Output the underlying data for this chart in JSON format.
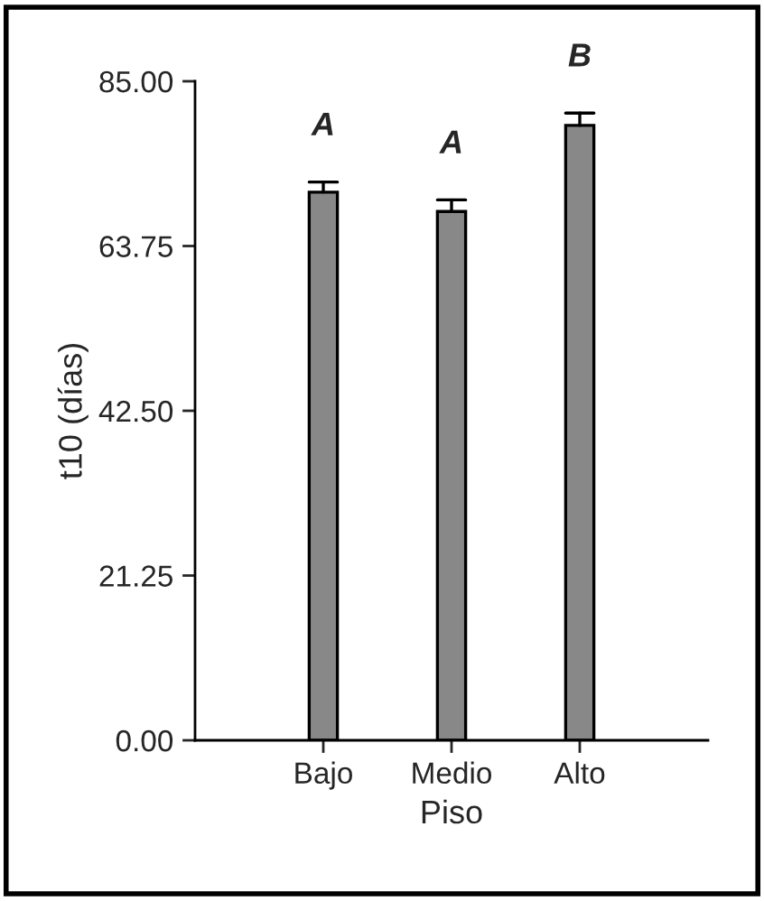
{
  "chart_data": {
    "type": "bar",
    "xlabel": "Piso",
    "ylabel": "t10 (días)",
    "categories": [
      "Bajo",
      "Medio",
      "Alto"
    ],
    "values": [
      70.7,
      68.2,
      79.3
    ],
    "errors": [
      [
        70.7,
        72.0
      ],
      [
        68.2,
        69.7
      ],
      [
        79.3,
        80.9
      ]
    ],
    "color": "#888888",
    "ylim": [
      0,
      85
    ],
    "yticks": [
      {
        "value": 0,
        "label": "0.00"
      },
      {
        "value": 21.25,
        "label": "21.25"
      },
      {
        "value": 42.5,
        "label": "42.50"
      },
      {
        "value": 63.75,
        "label": "63.75"
      },
      {
        "value": 85,
        "label": "85.00"
      }
    ],
    "grid": false,
    "annotations": [
      "A",
      "A",
      "B"
    ]
  }
}
